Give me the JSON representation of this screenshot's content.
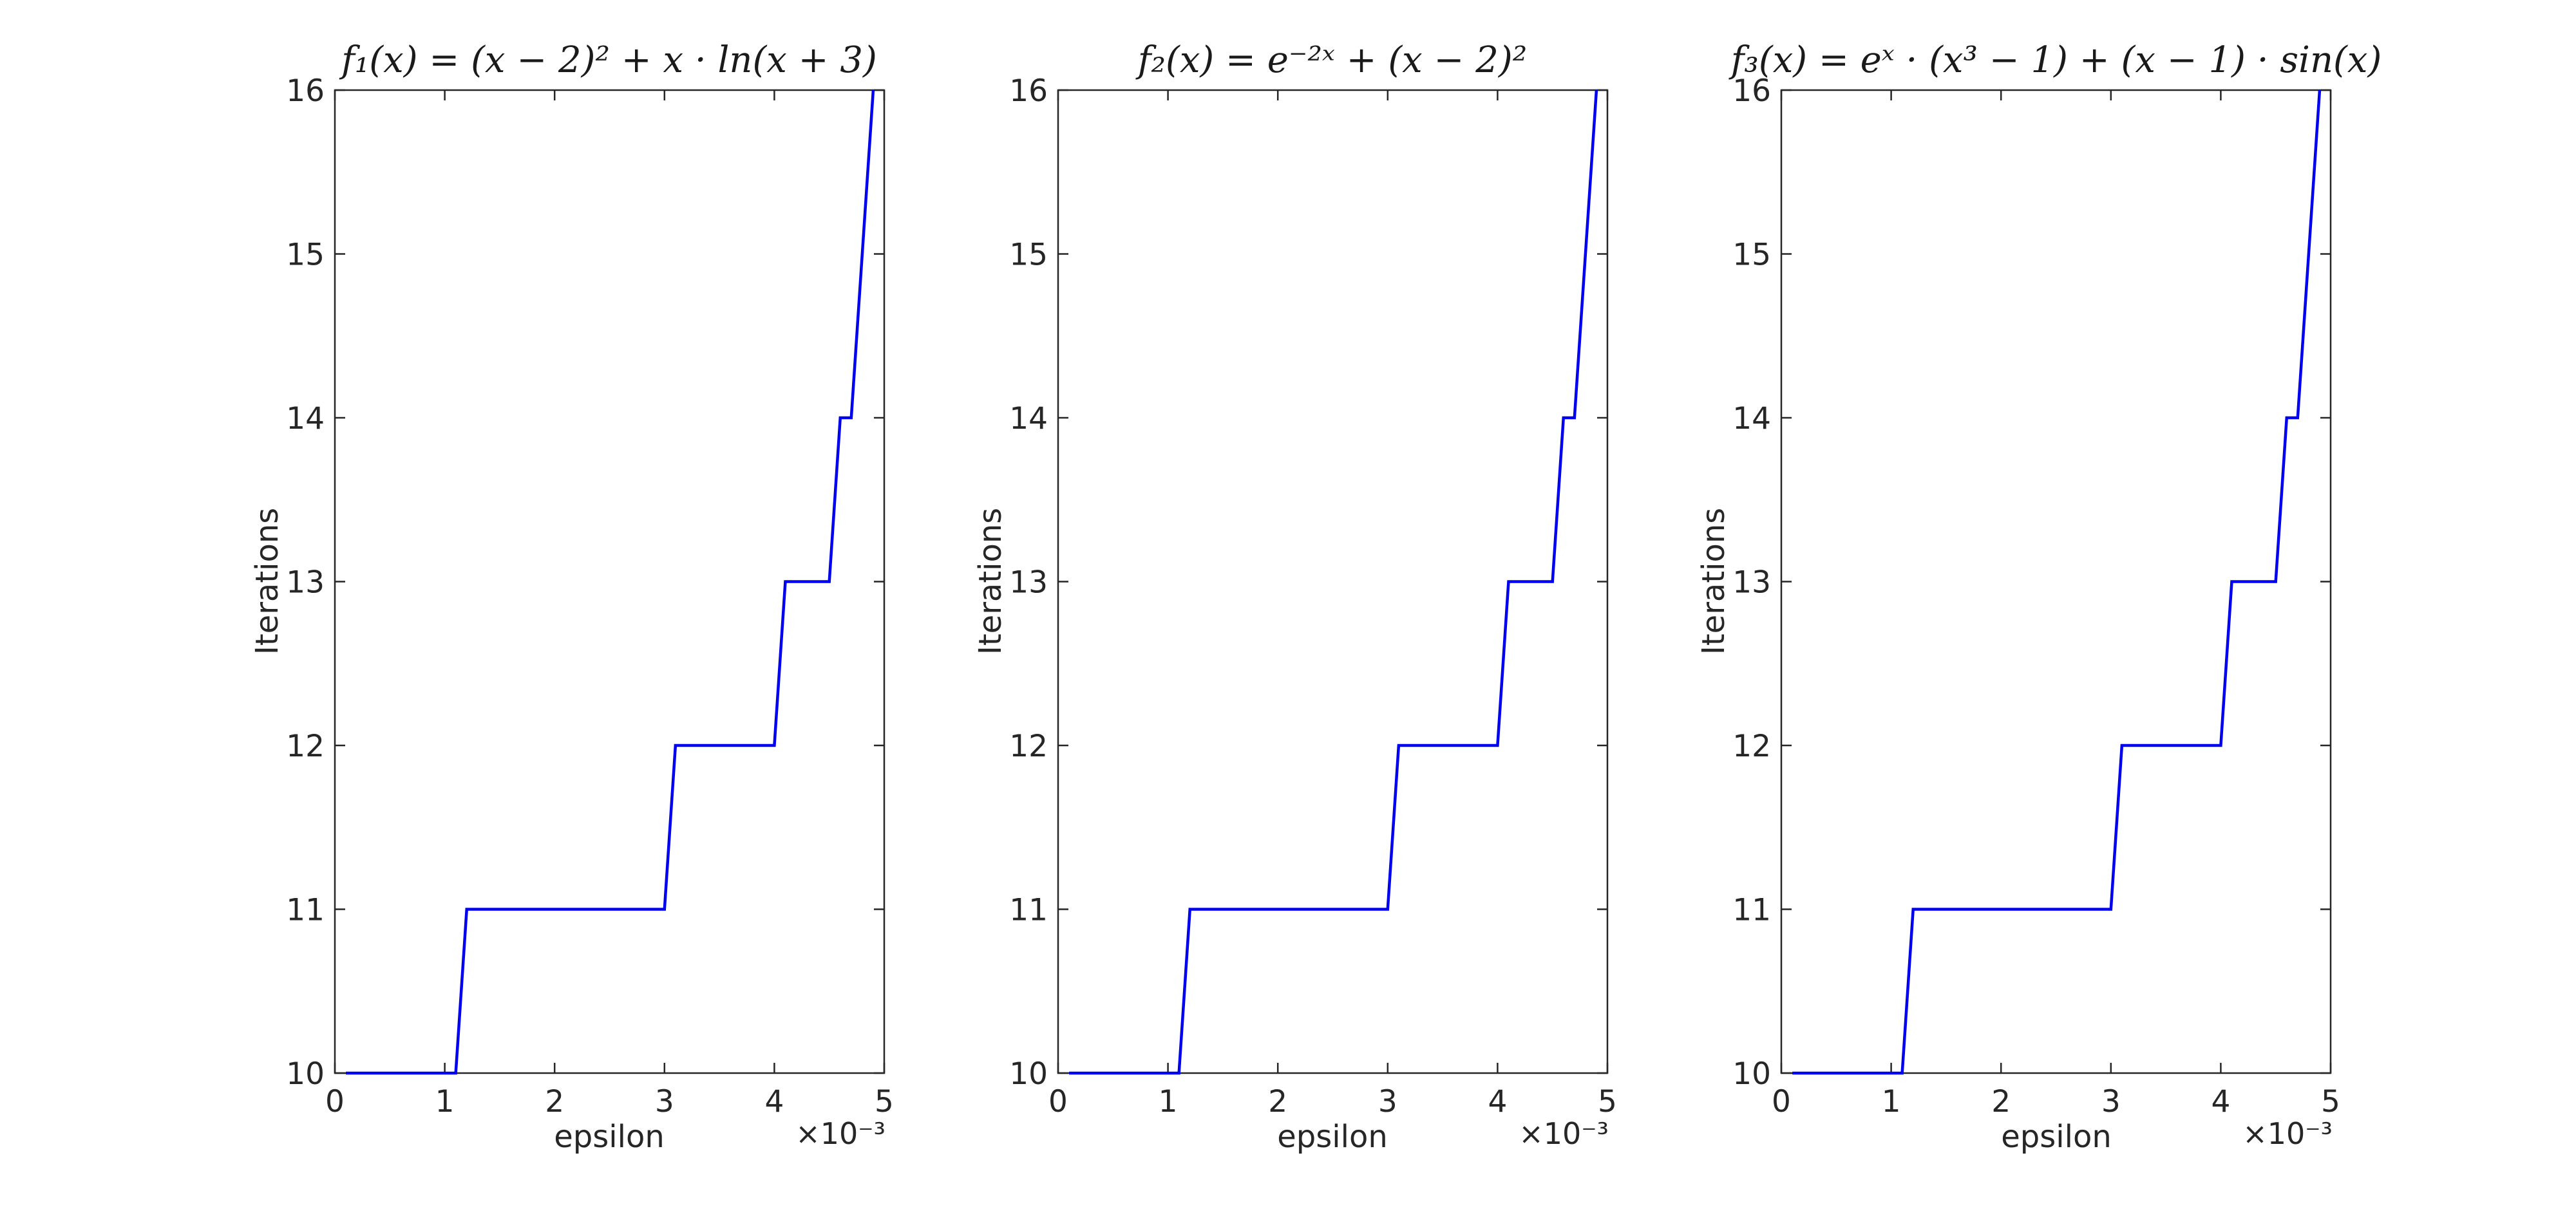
{
  "figure": {
    "background": "#ffffff",
    "axis_color": "#262626",
    "line_color": "#0000f0",
    "tick_label_color": "#262626"
  },
  "chart_data": [
    {
      "type": "line",
      "title": "f₁(x) = (x − 2)² + x · ln(x + 3)",
      "xlabel": "epsilon",
      "ylabel": "Iterations",
      "x_multiplier_label": "×10⁻³",
      "xlim": [
        0,
        5
      ],
      "ylim": [
        10,
        16
      ],
      "x_ticks": [
        0,
        1,
        2,
        3,
        4,
        5
      ],
      "y_ticks": [
        10,
        11,
        12,
        13,
        14,
        15,
        16
      ],
      "grid": false,
      "legend": null,
      "x_units": "1e-3",
      "line": {
        "x": [
          0.1,
          1.1,
          1.2,
          3.0,
          3.1,
          4.0,
          4.1,
          4.5,
          4.6,
          4.7,
          4.8,
          4.9
        ],
        "y": [
          10,
          10,
          11,
          11,
          12,
          12,
          13,
          13,
          14,
          14,
          15,
          16
        ]
      }
    },
    {
      "type": "line",
      "title": "f₂(x) = e⁻²ˣ + (x − 2)²",
      "xlabel": "epsilon",
      "ylabel": "Iterations",
      "x_multiplier_label": "×10⁻³",
      "xlim": [
        0,
        5
      ],
      "ylim": [
        10,
        16
      ],
      "x_ticks": [
        0,
        1,
        2,
        3,
        4,
        5
      ],
      "y_ticks": [
        10,
        11,
        12,
        13,
        14,
        15,
        16
      ],
      "grid": false,
      "legend": null,
      "x_units": "1e-3",
      "line": {
        "x": [
          0.1,
          1.1,
          1.2,
          3.0,
          3.1,
          4.0,
          4.1,
          4.5,
          4.6,
          4.7,
          4.8,
          4.9
        ],
        "y": [
          10,
          10,
          11,
          11,
          12,
          12,
          13,
          13,
          14,
          14,
          15,
          16
        ]
      }
    },
    {
      "type": "line",
      "title": "f₃(x) = eˣ · (x³ − 1) + (x − 1) · sin(x)",
      "xlabel": "epsilon",
      "ylabel": "Iterations",
      "x_multiplier_label": "×10⁻³",
      "xlim": [
        0,
        5
      ],
      "ylim": [
        10,
        16
      ],
      "x_ticks": [
        0,
        1,
        2,
        3,
        4,
        5
      ],
      "y_ticks": [
        10,
        11,
        12,
        13,
        14,
        15,
        16
      ],
      "grid": false,
      "legend": null,
      "x_units": "1e-3",
      "line": {
        "x": [
          0.1,
          1.1,
          1.2,
          3.0,
          3.1,
          4.0,
          4.1,
          4.5,
          4.6,
          4.7,
          4.8,
          4.9
        ],
        "y": [
          10,
          10,
          11,
          11,
          12,
          12,
          13,
          13,
          14,
          14,
          15,
          16
        ]
      }
    }
  ]
}
